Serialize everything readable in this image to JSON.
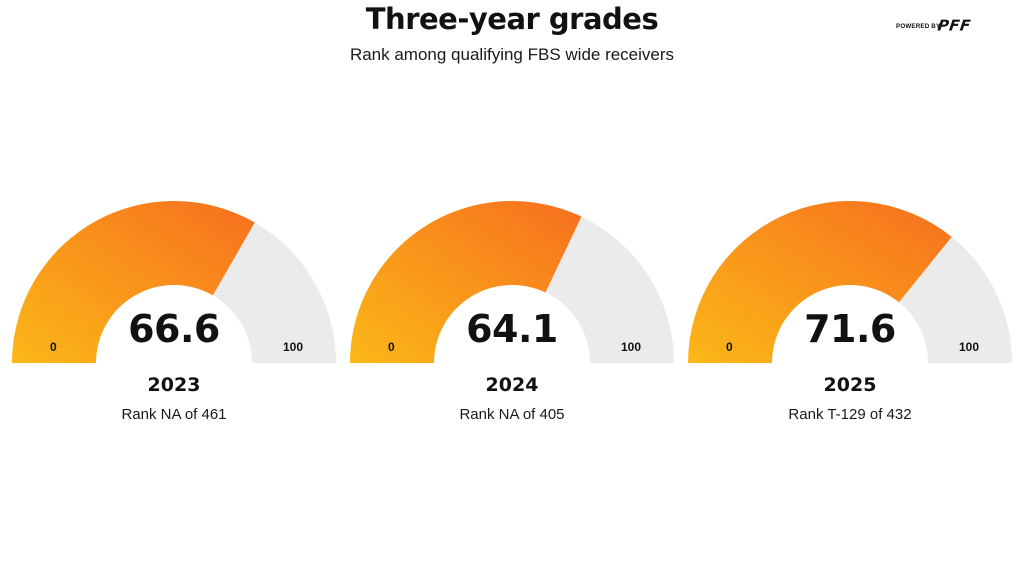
{
  "header": {
    "title": "Three-year grades",
    "subtitle": "Rank among qualifying FBS wide receivers"
  },
  "logo": {
    "prefix": "POWERED BY",
    "brand": "PFF"
  },
  "colors": {
    "fill_start": "#fbb818",
    "fill_end": "#f76f1e",
    "track": "#ebebeb",
    "text": "#111111"
  },
  "chart_data": [
    {
      "type": "gauge",
      "min": 0,
      "max": 100,
      "min_label": "0",
      "max_label": "100",
      "value": 66.6,
      "value_label": "66.6",
      "year": "2023",
      "rank_label": "Rank NA of 461"
    },
    {
      "type": "gauge",
      "min": 0,
      "max": 100,
      "min_label": "0",
      "max_label": "100",
      "value": 64.1,
      "value_label": "64.1",
      "year": "2024",
      "rank_label": "Rank NA of 405"
    },
    {
      "type": "gauge",
      "min": 0,
      "max": 100,
      "min_label": "0",
      "max_label": "100",
      "value": 71.6,
      "value_label": "71.6",
      "year": "2025",
      "rank_label": "Rank T-129 of 432"
    }
  ]
}
